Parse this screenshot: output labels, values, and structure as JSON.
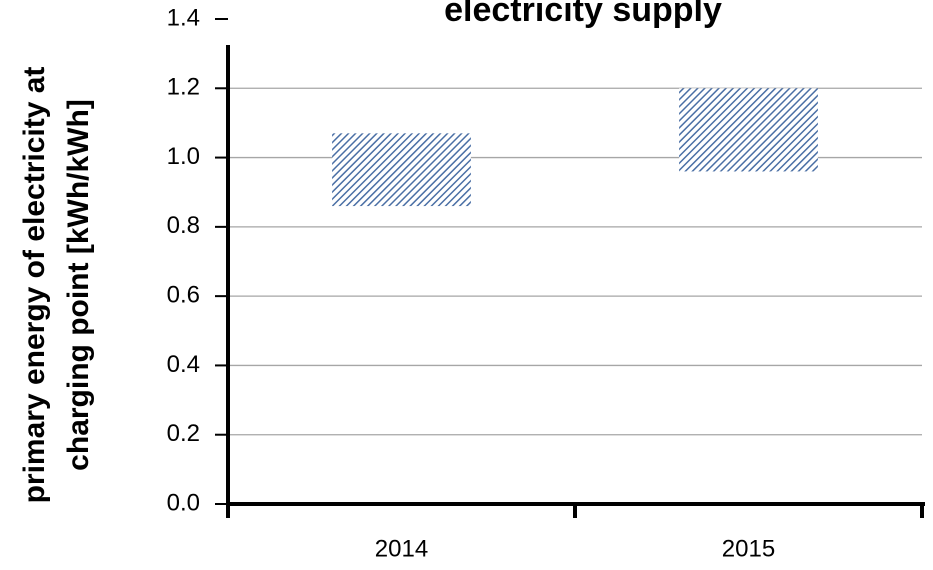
{
  "chart_data": {
    "type": "range_bar",
    "title": "electricity supply",
    "y_label": [
      "primary energy of electricity at",
      "charging point [kWh/kWh]"
    ],
    "categories": [
      "2014",
      "2015"
    ],
    "low": [
      0.86,
      0.96
    ],
    "high": [
      1.07,
      1.2
    ],
    "color": "#4a6fa5",
    "ylim": [
      0,
      1.4
    ],
    "yticks": [
      {
        "value": 0,
        "label": "0.0"
      },
      {
        "value": 0.2,
        "label": "0.2"
      },
      {
        "value": 0.4,
        "label": "0.4"
      },
      {
        "value": 0.6,
        "label": "0.6"
      },
      {
        "value": 0.8,
        "label": "0.8"
      },
      {
        "value": 1.0,
        "label": "1.0"
      },
      {
        "value": 1.2,
        "label": "1.2"
      },
      {
        "value": 1.4,
        "label": "1.4"
      }
    ],
    "grid": true
  }
}
